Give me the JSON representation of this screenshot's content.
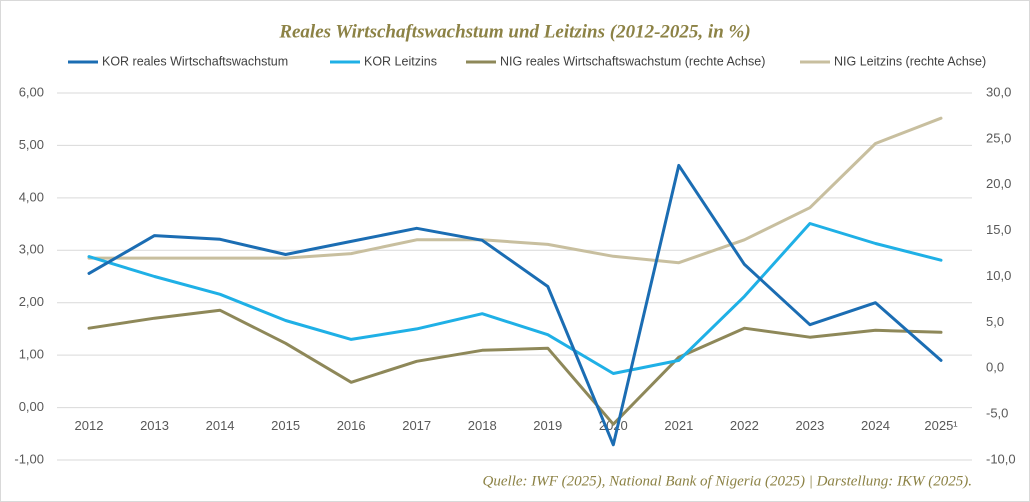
{
  "chart_data": {
    "type": "line",
    "title": "Reales Wirtschaftswachstum und Leitzins (2012-2025, in %)",
    "source": "Quelle: IWF (2025), National Bank of Nigeria (2025) | Darstellung: IKW (2025).",
    "categories": [
      "2012",
      "2013",
      "2014",
      "2015",
      "2016",
      "2017",
      "2018",
      "2019",
      "2020",
      "2021",
      "2022",
      "2023",
      "2024",
      "2025¹"
    ],
    "series": [
      {
        "name": "KOR reales Wirtschaftswachstum",
        "color": "#1b6db3",
        "values": [
          2.56,
          3.28,
          3.21,
          2.92,
          3.17,
          3.42,
          3.19,
          2.31,
          -0.71,
          4.62,
          2.73,
          1.58,
          2.0,
          0.9
        ]
      },
      {
        "name": "KOR Leitzins",
        "color": "#1fb0e6",
        "values": [
          2.88,
          2.5,
          2.16,
          1.66,
          1.3,
          1.5,
          1.79,
          1.39,
          0.65,
          0.9,
          2.12,
          3.51,
          3.13,
          2.81
        ]
      },
      {
        "name": "NIG reales Wirtschaftswachstum (rechte Achse)",
        "color": "#8e8859",
        "axis": "y2",
        "values": [
          4.36,
          5.45,
          6.32,
          2.72,
          -1.53,
          0.76,
          1.96,
          2.18,
          -6.1,
          1.2,
          4.36,
          3.38,
          4.14,
          3.92
        ]
      },
      {
        "name": "NIG Leitzins  (rechte Achse)",
        "color": "#c8bf9f",
        "axis": "y2",
        "values": [
          12.0,
          12.0,
          12.0,
          12.0,
          12.5,
          14.0,
          14.0,
          13.5,
          12.2,
          11.5,
          14.0,
          17.5,
          24.5,
          27.25
        ]
      }
    ],
    "ylim": [
      -1,
      6
    ],
    "yticks": [
      {
        "value": -1,
        "label": "-1,00"
      },
      {
        "value": 0,
        "label": "0,00"
      },
      {
        "value": 1,
        "label": "1,00"
      },
      {
        "value": 2,
        "label": "2,00"
      },
      {
        "value": 3,
        "label": "3,00"
      },
      {
        "value": 4,
        "label": "4,00"
      },
      {
        "value": 5,
        "label": "5,00"
      },
      {
        "value": 6,
        "label": "6,00"
      }
    ],
    "y2lim": [
      -10,
      30
    ],
    "y2ticks": [
      {
        "value": -10,
        "label": "-10,0"
      },
      {
        "value": -5,
        "label": "-5,0"
      },
      {
        "value": 0,
        "label": "0,0"
      },
      {
        "value": 5,
        "label": "5,0"
      },
      {
        "value": 10,
        "label": "10,0"
      },
      {
        "value": 15,
        "label": "15,0"
      },
      {
        "value": 20,
        "label": "20,0"
      },
      {
        "value": 25,
        "label": "25,0"
      },
      {
        "value": 30,
        "label": "30,0"
      }
    ],
    "grid": true
  }
}
